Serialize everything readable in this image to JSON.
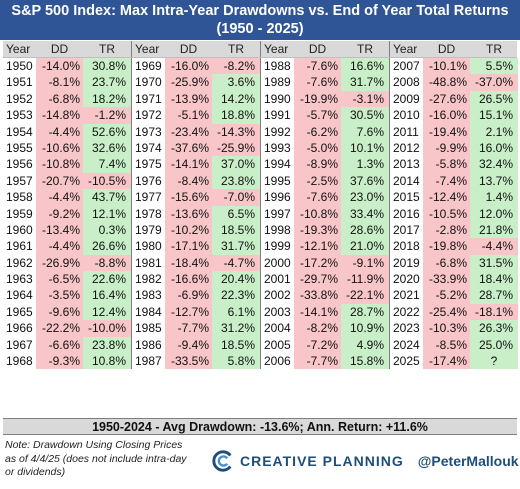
{
  "header": {
    "title_line1": "S&P 500 Index: Max Intra-Year Drawdowns vs. End of Year Total Returns",
    "title_line2": "(1950 - 2025)"
  },
  "columns": {
    "year": "Year",
    "dd": "DD",
    "tr": "TR"
  },
  "colors": {
    "title_bg": "#2f5597",
    "header_bg": "#d9d9d9",
    "negative_bg": "#f8c6c8",
    "positive_bg": "#c9efc9",
    "brand_text": "#1f4e79"
  },
  "chart_data": {
    "type": "table",
    "title": "S&P 500 Index: Max Intra-Year Drawdowns vs. End of Year Total Returns",
    "subtitle": "(1950 - 2025)",
    "columns": [
      "Year",
      "DD",
      "TR"
    ],
    "groups": [
      [
        [
          "1950",
          "-14.0%",
          "30.8%"
        ],
        [
          "1951",
          "-8.1%",
          "23.7%"
        ],
        [
          "1952",
          "-6.8%",
          "18.2%"
        ],
        [
          "1953",
          "-14.8%",
          "-1.2%"
        ],
        [
          "1954",
          "-4.4%",
          "52.6%"
        ],
        [
          "1955",
          "-10.6%",
          "32.6%"
        ],
        [
          "1956",
          "-10.8%",
          "7.4%"
        ],
        [
          "1957",
          "-20.7%",
          "-10.5%"
        ],
        [
          "1958",
          "-4.4%",
          "43.7%"
        ],
        [
          "1959",
          "-9.2%",
          "12.1%"
        ],
        [
          "1960",
          "-13.4%",
          "0.3%"
        ],
        [
          "1961",
          "-4.4%",
          "26.6%"
        ],
        [
          "1962",
          "-26.9%",
          "-8.8%"
        ],
        [
          "1963",
          "-6.5%",
          "22.6%"
        ],
        [
          "1964",
          "-3.5%",
          "16.4%"
        ],
        [
          "1965",
          "-9.6%",
          "12.4%"
        ],
        [
          "1966",
          "-22.2%",
          "-10.0%"
        ],
        [
          "1967",
          "-6.6%",
          "23.8%"
        ],
        [
          "1968",
          "-9.3%",
          "10.8%"
        ]
      ],
      [
        [
          "1969",
          "-16.0%",
          "-8.2%"
        ],
        [
          "1970",
          "-25.9%",
          "3.6%"
        ],
        [
          "1971",
          "-13.9%",
          "14.2%"
        ],
        [
          "1972",
          "-5.1%",
          "18.8%"
        ],
        [
          "1973",
          "-23.4%",
          "-14.3%"
        ],
        [
          "1974",
          "-37.6%",
          "-25.9%"
        ],
        [
          "1975",
          "-14.1%",
          "37.0%"
        ],
        [
          "1976",
          "-8.4%",
          "23.8%"
        ],
        [
          "1977",
          "-15.6%",
          "-7.0%"
        ],
        [
          "1978",
          "-13.6%",
          "6.5%"
        ],
        [
          "1979",
          "-10.2%",
          "18.5%"
        ],
        [
          "1980",
          "-17.1%",
          "31.7%"
        ],
        [
          "1981",
          "-18.4%",
          "-4.7%"
        ],
        [
          "1982",
          "-16.6%",
          "20.4%"
        ],
        [
          "1983",
          "-6.9%",
          "22.3%"
        ],
        [
          "1984",
          "-12.7%",
          "6.1%"
        ],
        [
          "1985",
          "-7.7%",
          "31.2%"
        ],
        [
          "1986",
          "-9.4%",
          "18.5%"
        ],
        [
          "1987",
          "-33.5%",
          "5.8%"
        ]
      ],
      [
        [
          "1988",
          "-7.6%",
          "16.6%"
        ],
        [
          "1989",
          "-7.6%",
          "31.7%"
        ],
        [
          "1990",
          "-19.9%",
          "-3.1%"
        ],
        [
          "1991",
          "-5.7%",
          "30.5%"
        ],
        [
          "1992",
          "-6.2%",
          "7.6%"
        ],
        [
          "1993",
          "-5.0%",
          "10.1%"
        ],
        [
          "1994",
          "-8.9%",
          "1.3%"
        ],
        [
          "1995",
          "-2.5%",
          "37.6%"
        ],
        [
          "1996",
          "-7.6%",
          "23.0%"
        ],
        [
          "1997",
          "-10.8%",
          "33.4%"
        ],
        [
          "1998",
          "-19.3%",
          "28.6%"
        ],
        [
          "1999",
          "-12.1%",
          "21.0%"
        ],
        [
          "2000",
          "-17.2%",
          "-9.1%"
        ],
        [
          "2001",
          "-29.7%",
          "-11.9%"
        ],
        [
          "2002",
          "-33.8%",
          "-22.1%"
        ],
        [
          "2003",
          "-14.1%",
          "28.7%"
        ],
        [
          "2004",
          "-8.2%",
          "10.9%"
        ],
        [
          "2005",
          "-7.2%",
          "4.9%"
        ],
        [
          "2006",
          "-7.7%",
          "15.8%"
        ]
      ],
      [
        [
          "2007",
          "-10.1%",
          "5.5%"
        ],
        [
          "2008",
          "-48.8%",
          "-37.0%"
        ],
        [
          "2009",
          "-27.6%",
          "26.5%"
        ],
        [
          "2010",
          "-16.0%",
          "15.1%"
        ],
        [
          "2011",
          "-19.4%",
          "2.1%"
        ],
        [
          "2012",
          "-9.9%",
          "16.0%"
        ],
        [
          "2013",
          "-5.8%",
          "32.4%"
        ],
        [
          "2014",
          "-7.4%",
          "13.7%"
        ],
        [
          "2015",
          "-12.4%",
          "1.4%"
        ],
        [
          "2016",
          "-10.5%",
          "12.0%"
        ],
        [
          "2017",
          "-2.8%",
          "21.8%"
        ],
        [
          "2018",
          "-19.8%",
          "-4.4%"
        ],
        [
          "2019",
          "-6.8%",
          "31.5%"
        ],
        [
          "2020",
          "-33.9%",
          "18.4%"
        ],
        [
          "2021",
          "-5.2%",
          "28.7%"
        ],
        [
          "2022",
          "-25.4%",
          "-18.1%"
        ],
        [
          "2023",
          "-10.3%",
          "26.3%"
        ],
        [
          "2024",
          "-8.5%",
          "25.0%"
        ],
        [
          "2025",
          "-17.4%",
          "?"
        ]
      ]
    ]
  },
  "summary": "1950-2024 - Avg Drawdown: -13.6%; Ann. Return: +11.6%",
  "footer": {
    "note": "Note: Drawdown Using Closing Prices as of 4/4/25 (does not include intra-day or dividends)",
    "brand": "CREATIVE PLANNING",
    "handle": "@PeterMallouk",
    "logo_icon": "creative-planning-logo-icon"
  }
}
